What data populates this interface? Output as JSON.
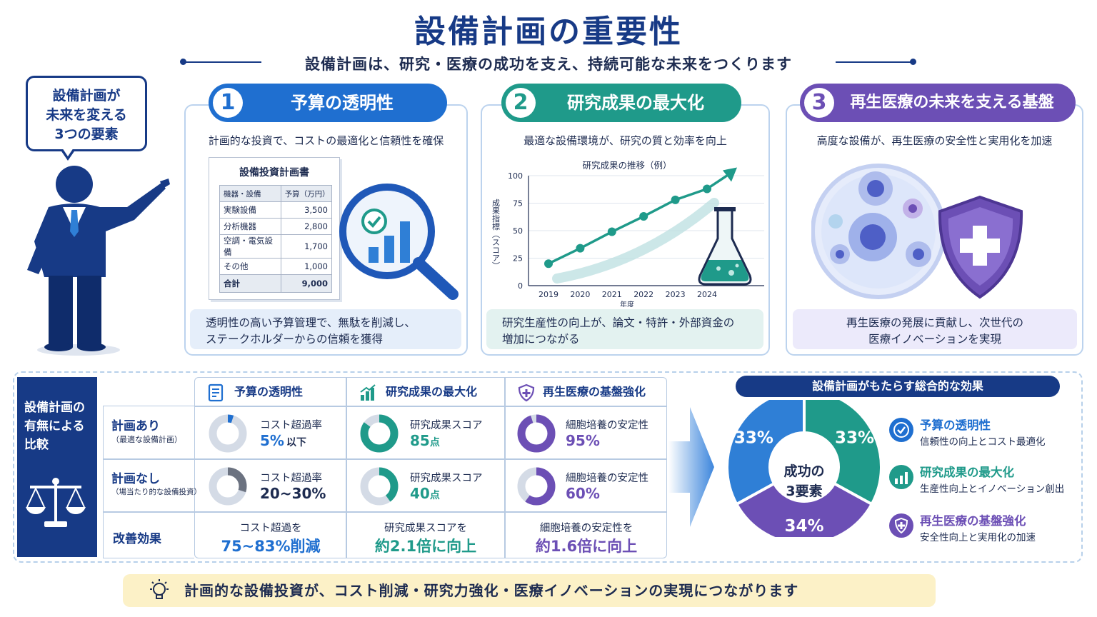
{
  "header": {
    "title": "設備計画の重要性",
    "subtitle": "設備計画は、研究・医療の成功を支え、持続可能な未来をつくります"
  },
  "speech_bubble": [
    "設備計画が",
    "未来を変える",
    "3つの要素"
  ],
  "cards": [
    {
      "number": "1",
      "title": "予算の透明性",
      "subtitle": "計画的な投資で、コストの最適化と信頼性を確保",
      "note": [
        "透明性の高い予算管理で、無駄を削減し、",
        "ステークホルダーからの信頼を獲得"
      ],
      "color": "#1f6fd0"
    },
    {
      "number": "2",
      "title": "研究成果の最大化",
      "subtitle": "最適な設備環境が、研究の質と効率を向上",
      "note": [
        "研究生産性の向上が、論文・特許・外部資金の",
        "増加につながる"
      ],
      "color": "#1f9a8a"
    },
    {
      "number": "3",
      "title": "再生医療の未来を支える基盤",
      "subtitle": "高度な設備が、再生医療の安全性と実用化を加速",
      "note": [
        "再生医療の発展に貢献し、次世代の",
        "医療イノベーションを実現"
      ],
      "color": "#6c4fb5"
    }
  ],
  "budget_doc": {
    "title": "設備投資計画書",
    "header": [
      "機器・設備",
      "予算（万円）"
    ],
    "rows": [
      [
        "実験設備",
        "3,500"
      ],
      [
        "分析機器",
        "2,800"
      ],
      [
        "空調・電気設備",
        "1,700"
      ],
      [
        "その他",
        "1,000"
      ]
    ],
    "total": [
      "合計",
      "9,000"
    ]
  },
  "chart_data": {
    "type": "line",
    "title": "研究成果の推移（例）",
    "xlabel": "年度",
    "ylabel": "成果指標（スコア）",
    "x": [
      "2019",
      "2020",
      "2021",
      "2022",
      "2023",
      "2024"
    ],
    "values": [
      20,
      34,
      49,
      63,
      78,
      88
    ],
    "ylim": [
      0,
      100
    ],
    "yticks": [
      "0",
      "25",
      "50",
      "75",
      "100"
    ],
    "grid": true
  },
  "comparison": {
    "side_title": [
      "設備計画の",
      "有無による",
      "比較"
    ],
    "columns": [
      {
        "title": "予算の透明性",
        "color": "#1f6fd0"
      },
      {
        "title": "研究成果の最大化",
        "color": "#1f9a8a"
      },
      {
        "title": "再生医療の基盤強化",
        "color": "#6c4fb5"
      }
    ],
    "rows": [
      {
        "label": "計画あり",
        "sub": "（最適な設備計画）",
        "cells": [
          {
            "label": "コスト超過率",
            "value": "5%",
            "suffix": "以下",
            "ring_fraction": 0.05
          },
          {
            "label": "研究成果スコア",
            "value": "85",
            "suffix": "点",
            "ring_fraction": 0.85
          },
          {
            "label": "細胞培養の安定性",
            "value": "95%",
            "suffix": "",
            "ring_fraction": 0.95
          }
        ]
      },
      {
        "label": "計画なし",
        "sub": "（場当たり的な設備投資）",
        "cells": [
          {
            "label": "コスト超過率",
            "value": "20~30%",
            "suffix": "",
            "ring_fraction": 0.3
          },
          {
            "label": "研究成果スコア",
            "value": "40",
            "suffix": "点",
            "ring_fraction": 0.4
          },
          {
            "label": "細胞培養の安定性",
            "value": "60%",
            "suffix": "",
            "ring_fraction": 0.6
          }
        ]
      }
    ],
    "improvement": {
      "label": "改善効果",
      "cells": [
        {
          "line1": "コスト超過を",
          "line2": "75~83%削減"
        },
        {
          "line1": "研究成果スコアを",
          "line2": "約2.1倍に向上"
        },
        {
          "line1": "細胞培養の安定性を",
          "line2": "約1.6倍に向上"
        }
      ]
    }
  },
  "effects": {
    "title": "設備計画がもたらす総合的な効果",
    "center": [
      "成功の",
      "3要素"
    ],
    "slices": [
      {
        "value": 33,
        "label": "33%",
        "color": "#1f9a8a"
      },
      {
        "value": 34,
        "label": "34%",
        "color": "#6c4fb5"
      },
      {
        "value": 33,
        "label": "33%",
        "color": "#2f7fd6"
      }
    ],
    "legend": [
      {
        "title": "予算の透明性",
        "sub": "信頼性の向上とコスト最適化",
        "color": "#1f6fd0",
        "icon": "check-icon"
      },
      {
        "title": "研究成果の最大化",
        "sub": "生産性向上とイノベーション創出",
        "color": "#1f9a8a",
        "icon": "bar-chart-icon"
      },
      {
        "title": "再生医療の基盤強化",
        "sub": "安全性向上と実用化の加速",
        "color": "#6c4fb5",
        "icon": "shield-icon"
      }
    ]
  },
  "footer": "計画的な設備投資が、コスト削減・研究力強化・医療イノベーションの実現につながります"
}
